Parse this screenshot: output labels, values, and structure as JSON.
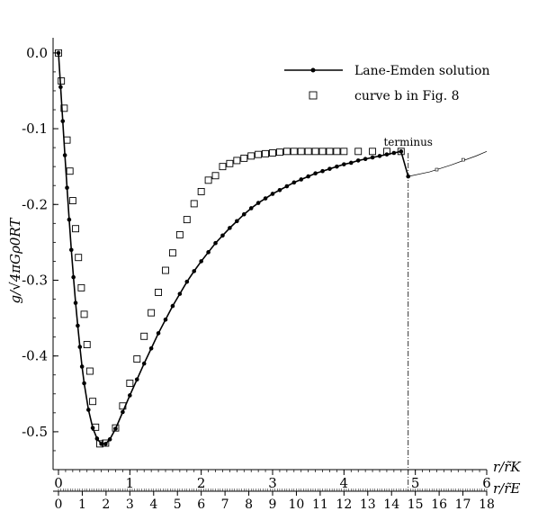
{
  "chart_data": {
    "type": "line",
    "ylabel": "g/√4πGρ0RT",
    "x_axis_primary": {
      "label": "r/r̃K",
      "range": [
        0,
        6
      ],
      "ticks": [
        "0",
        "1",
        "2",
        "3",
        "4",
        "5",
        "6"
      ]
    },
    "x_axis_secondary": {
      "label": "r/r̃E",
      "range": [
        0,
        18
      ],
      "ticks": [
        "0",
        "1",
        "2",
        "3",
        "4",
        "5",
        "6",
        "7",
        "8",
        "9",
        "10",
        "11",
        "12",
        "13",
        "14",
        "15",
        "16",
        "17",
        "18"
      ]
    },
    "y_axis": {
      "range": [
        -0.55,
        0.02
      ],
      "ticks": [
        "0.0",
        "-0.1",
        "-0.2",
        "-0.3",
        "-0.4",
        "-0.5"
      ]
    },
    "grid": false,
    "legend_position": "top-right",
    "annotations": [
      {
        "text": "terminus",
        "x": 4.9
      }
    ],
    "series": [
      {
        "name": "Lane-Emden solution",
        "style": "line-with-filled-dots",
        "color": "#000000",
        "x": [
          0,
          0.03,
          0.06,
          0.09,
          0.12,
          0.15,
          0.18,
          0.21,
          0.24,
          0.27,
          0.3,
          0.33,
          0.36,
          0.42,
          0.48,
          0.54,
          0.6,
          0.66,
          0.72,
          0.8,
          0.9,
          1.0,
          1.1,
          1.2,
          1.3,
          1.4,
          1.5,
          1.6,
          1.7,
          1.8,
          1.9,
          2.0,
          2.1,
          2.2,
          2.3,
          2.4,
          2.5,
          2.6,
          2.7,
          2.8,
          2.9,
          3.0,
          3.1,
          3.2,
          3.3,
          3.4,
          3.5,
          3.6,
          3.7,
          3.8,
          3.9,
          4.0,
          4.1,
          4.2,
          4.3,
          4.4,
          4.5,
          4.6,
          4.7,
          4.8,
          4.9
        ],
        "y": [
          0.0,
          -0.045,
          -0.09,
          -0.135,
          -0.178,
          -0.22,
          -0.26,
          -0.296,
          -0.33,
          -0.36,
          -0.388,
          -0.414,
          -0.436,
          -0.471,
          -0.495,
          -0.509,
          -0.516,
          -0.516,
          -0.51,
          -0.496,
          -0.474,
          -0.452,
          -0.431,
          -0.41,
          -0.39,
          -0.37,
          -0.352,
          -0.334,
          -0.318,
          -0.302,
          -0.288,
          -0.275,
          -0.263,
          -0.251,
          -0.241,
          -0.231,
          -0.222,
          -0.213,
          -0.205,
          -0.198,
          -0.192,
          -0.186,
          -0.181,
          -0.176,
          -0.171,
          -0.167,
          -0.163,
          -0.159,
          -0.156,
          -0.153,
          -0.15,
          -0.147,
          -0.145,
          -0.142,
          -0.14,
          -0.138,
          -0.136,
          -0.134,
          -0.132,
          -0.13,
          -0.163
        ]
      },
      {
        "name": "curve  b  in Fig. 8",
        "style": "open-squares",
        "color": "#000000",
        "x": [
          0,
          0.04,
          0.08,
          0.12,
          0.16,
          0.2,
          0.24,
          0.28,
          0.32,
          0.36,
          0.4,
          0.44,
          0.48,
          0.52,
          0.58,
          0.66,
          0.8,
          0.9,
          1.0,
          1.1,
          1.2,
          1.3,
          1.4,
          1.5,
          1.6,
          1.7,
          1.8,
          1.9,
          2.0,
          2.1,
          2.2,
          2.3,
          2.4,
          2.5,
          2.6,
          2.7,
          2.8,
          2.9,
          3.0,
          3.1,
          3.2,
          3.3,
          3.4,
          3.5,
          3.6,
          3.7,
          3.8,
          3.9,
          4.0,
          4.2,
          4.4,
          4.6,
          4.8
        ],
        "y": [
          0.0,
          -0.037,
          -0.073,
          -0.115,
          -0.156,
          -0.195,
          -0.232,
          -0.27,
          -0.31,
          -0.345,
          -0.385,
          -0.42,
          -0.46,
          -0.494,
          -0.516,
          -0.515,
          -0.495,
          -0.466,
          -0.436,
          -0.404,
          -0.374,
          -0.343,
          -0.316,
          -0.287,
          -0.264,
          -0.24,
          -0.22,
          -0.199,
          -0.183,
          -0.168,
          -0.162,
          -0.15,
          -0.146,
          -0.142,
          -0.139,
          -0.136,
          -0.134,
          -0.133,
          -0.132,
          -0.131,
          -0.13,
          -0.13,
          -0.13,
          -0.13,
          -0.13,
          -0.13,
          -0.13,
          -0.13,
          -0.13,
          -0.13,
          -0.13,
          -0.13,
          -0.13
        ]
      }
    ]
  }
}
